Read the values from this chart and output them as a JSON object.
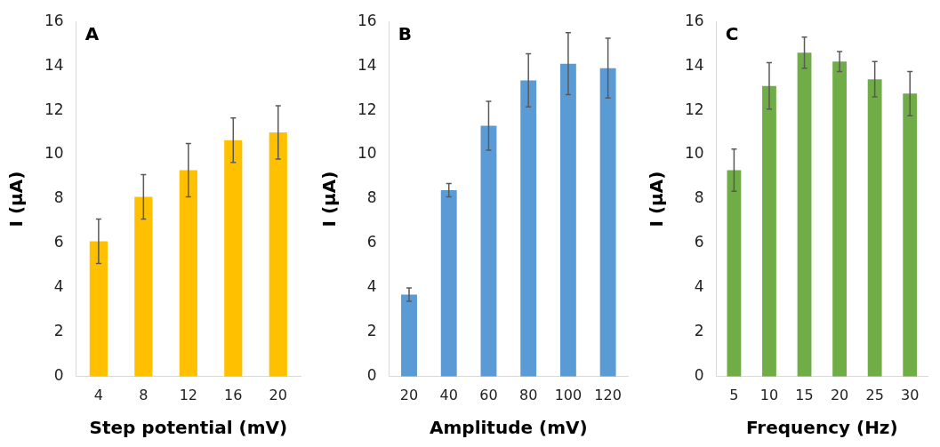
{
  "chart_data": [
    {
      "type": "bar",
      "title": "A",
      "xlabel": "Step potential (mV)",
      "ylabel": "I (µA)",
      "categories": [
        "4",
        "8",
        "12",
        "16",
        "20"
      ],
      "values": [
        6.1,
        8.1,
        9.3,
        10.65,
        11.0
      ],
      "errors": [
        1.0,
        1.0,
        1.2,
        1.0,
        1.2
      ],
      "color": "#ffc000",
      "ylim": [
        0,
        16
      ],
      "yticks": [
        0,
        2,
        4,
        6,
        8,
        10,
        12,
        14,
        16
      ],
      "grid": false,
      "legend": false
    },
    {
      "type": "bar",
      "title": "B",
      "xlabel": "Amplitude (mV)",
      "ylabel": "I (µA)",
      "categories": [
        "20",
        "40",
        "60",
        "80",
        "100",
        "120"
      ],
      "values": [
        3.7,
        8.4,
        11.3,
        13.35,
        14.1,
        13.9
      ],
      "errors": [
        0.3,
        0.3,
        1.1,
        1.2,
        1.4,
        1.35
      ],
      "color": "#5b9bd5",
      "ylim": [
        0,
        16
      ],
      "yticks": [
        0,
        2,
        4,
        6,
        8,
        10,
        12,
        14,
        16
      ],
      "grid": false,
      "legend": false
    },
    {
      "type": "bar",
      "title": "C",
      "xlabel": "Frequency (Hz)",
      "ylabel": "I (µA)",
      "categories": [
        "5",
        "10",
        "15",
        "20",
        "25",
        "30"
      ],
      "values": [
        9.3,
        13.1,
        14.6,
        14.2,
        13.4,
        12.75
      ],
      "errors": [
        0.95,
        1.05,
        0.7,
        0.45,
        0.8,
        1.0
      ],
      "color": "#70ad47",
      "ylim": [
        0,
        16
      ],
      "yticks": [
        0,
        2,
        4,
        6,
        8,
        10,
        12,
        14,
        16
      ],
      "grid": false,
      "legend": false
    }
  ]
}
